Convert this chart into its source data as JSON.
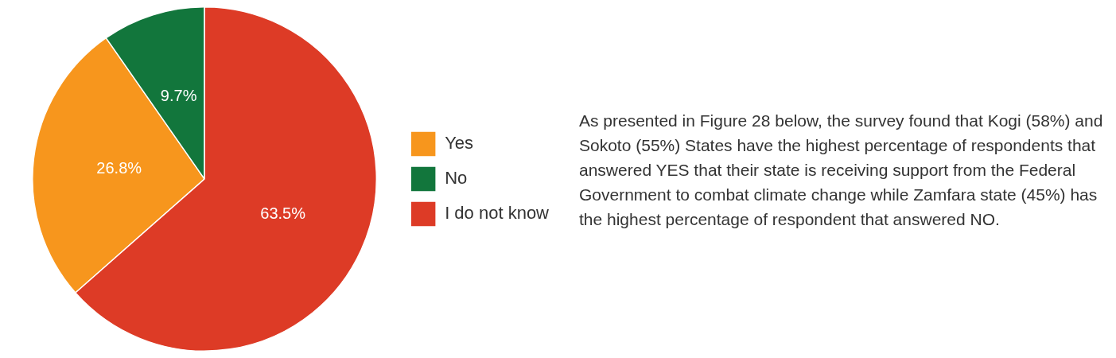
{
  "chart_data": {
    "type": "pie",
    "categories": [
      "Yes",
      "No",
      "I do not know"
    ],
    "values": [
      26.8,
      9.7,
      63.5
    ],
    "colors": [
      "#f7961d",
      "#12763c",
      "#dd3b26"
    ],
    "value_labels": [
      "26.8%",
      "9.7%",
      "63.5%"
    ],
    "legend": "right",
    "annotations": [
      "As presented in Figure 28 below, the survey found that Kogi (58%) and Sokoto (55%) States have the highest percentage of respondents that answered YES that their state is receiving support from the Federal Government to combat climate change while Zamfara state (45%) has the highest percentage of respondent that answered NO."
    ]
  }
}
